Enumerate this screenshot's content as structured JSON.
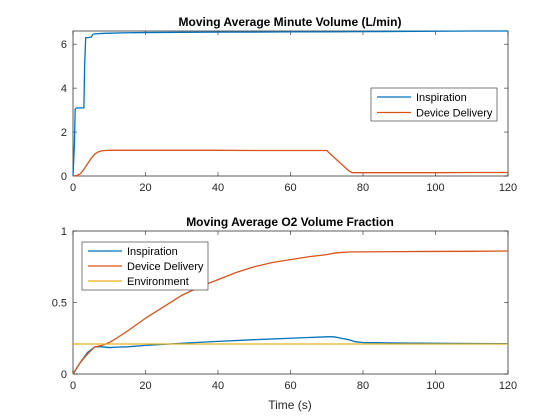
{
  "chart_data": [
    {
      "type": "line",
      "title": "Moving Average Minute Volume (L/min)",
      "xlabel": "",
      "ylabel": "",
      "xlim": [
        0,
        120
      ],
      "ylim": [
        0,
        6.6
      ],
      "xticks": [
        0,
        20,
        40,
        60,
        80,
        100,
        120
      ],
      "xtick_labels": [
        "0",
        "20",
        "40",
        "60",
        "80",
        "100",
        "120"
      ],
      "yticks": [
        0,
        2,
        4,
        6
      ],
      "ytick_labels": [
        "0",
        "2",
        "4",
        "6"
      ],
      "grid": false,
      "legend_position": "right",
      "series": [
        {
          "name": "Inspiration",
          "color": "#0072BD",
          "x": [
            0,
            0.4,
            0.6,
            1,
            2,
            3,
            3.2,
            3.5,
            4,
            5,
            5.5,
            6,
            8,
            10,
            15,
            20,
            30,
            40,
            50,
            60,
            70,
            80,
            90,
            100,
            110,
            120
          ],
          "y": [
            0,
            1.5,
            3.05,
            3.1,
            3.1,
            3.1,
            5.0,
            6.3,
            6.3,
            6.32,
            6.45,
            6.47,
            6.49,
            6.5,
            6.52,
            6.53,
            6.54,
            6.55,
            6.55,
            6.56,
            6.56,
            6.57,
            6.58,
            6.59,
            6.6,
            6.6
          ]
        },
        {
          "name": "Device Delivery",
          "color": "#D95319",
          "x": [
            0,
            1,
            2,
            3,
            4,
            5,
            6,
            7,
            8,
            9,
            10,
            15,
            20,
            30,
            40,
            50,
            60,
            65,
            70,
            71,
            72,
            73,
            74,
            75,
            76,
            77,
            80,
            90,
            100,
            110,
            120
          ],
          "y": [
            0,
            0.02,
            0.1,
            0.3,
            0.55,
            0.8,
            1.0,
            1.1,
            1.15,
            1.16,
            1.17,
            1.17,
            1.17,
            1.17,
            1.17,
            1.16,
            1.16,
            1.16,
            1.16,
            1.0,
            0.85,
            0.7,
            0.55,
            0.4,
            0.25,
            0.15,
            0.15,
            0.15,
            0.15,
            0.16,
            0.16
          ]
        }
      ]
    },
    {
      "type": "line",
      "title": "Moving Average O2 Volume Fraction",
      "xlabel": "Time (s)",
      "ylabel": "",
      "xlim": [
        0,
        120
      ],
      "ylim": [
        0,
        1
      ],
      "xticks": [
        0,
        20,
        40,
        60,
        80,
        100,
        120
      ],
      "xtick_labels": [
        "0",
        "20",
        "40",
        "60",
        "80",
        "100",
        "120"
      ],
      "yticks": [
        0,
        0.5,
        1
      ],
      "ytick_labels": [
        "0",
        "0.5",
        "1"
      ],
      "grid": false,
      "legend_position": "top-left",
      "series": [
        {
          "name": "Inspiration",
          "color": "#0072BD",
          "x": [
            0,
            2,
            4,
            6,
            8,
            10,
            12,
            15,
            20,
            25,
            30,
            40,
            50,
            60,
            65,
            70,
            72,
            74,
            76,
            78,
            80,
            90,
            100,
            110,
            120
          ],
          "y": [
            0,
            0.08,
            0.15,
            0.19,
            0.19,
            0.185,
            0.188,
            0.19,
            0.2,
            0.207,
            0.215,
            0.228,
            0.24,
            0.25,
            0.255,
            0.26,
            0.26,
            0.25,
            0.24,
            0.225,
            0.22,
            0.217,
            0.215,
            0.213,
            0.212
          ]
        },
        {
          "name": "Device Delivery",
          "color": "#D95319",
          "x": [
            0,
            2,
            4,
            6,
            8,
            10,
            12,
            15,
            20,
            25,
            30,
            35,
            40,
            45,
            50,
            55,
            60,
            65,
            70,
            72,
            74,
            76,
            80,
            90,
            100,
            110,
            120
          ],
          "y": [
            0,
            0.08,
            0.14,
            0.19,
            0.2,
            0.22,
            0.25,
            0.3,
            0.39,
            0.47,
            0.55,
            0.61,
            0.66,
            0.71,
            0.75,
            0.78,
            0.8,
            0.82,
            0.835,
            0.845,
            0.85,
            0.853,
            0.854,
            0.856,
            0.857,
            0.858,
            0.86
          ]
        },
        {
          "name": "Environment",
          "color": "#EDB120",
          "x": [
            0,
            20,
            40,
            60,
            80,
            100,
            120
          ],
          "y": [
            0.21,
            0.21,
            0.21,
            0.21,
            0.21,
            0.21,
            0.21
          ]
        }
      ]
    }
  ]
}
